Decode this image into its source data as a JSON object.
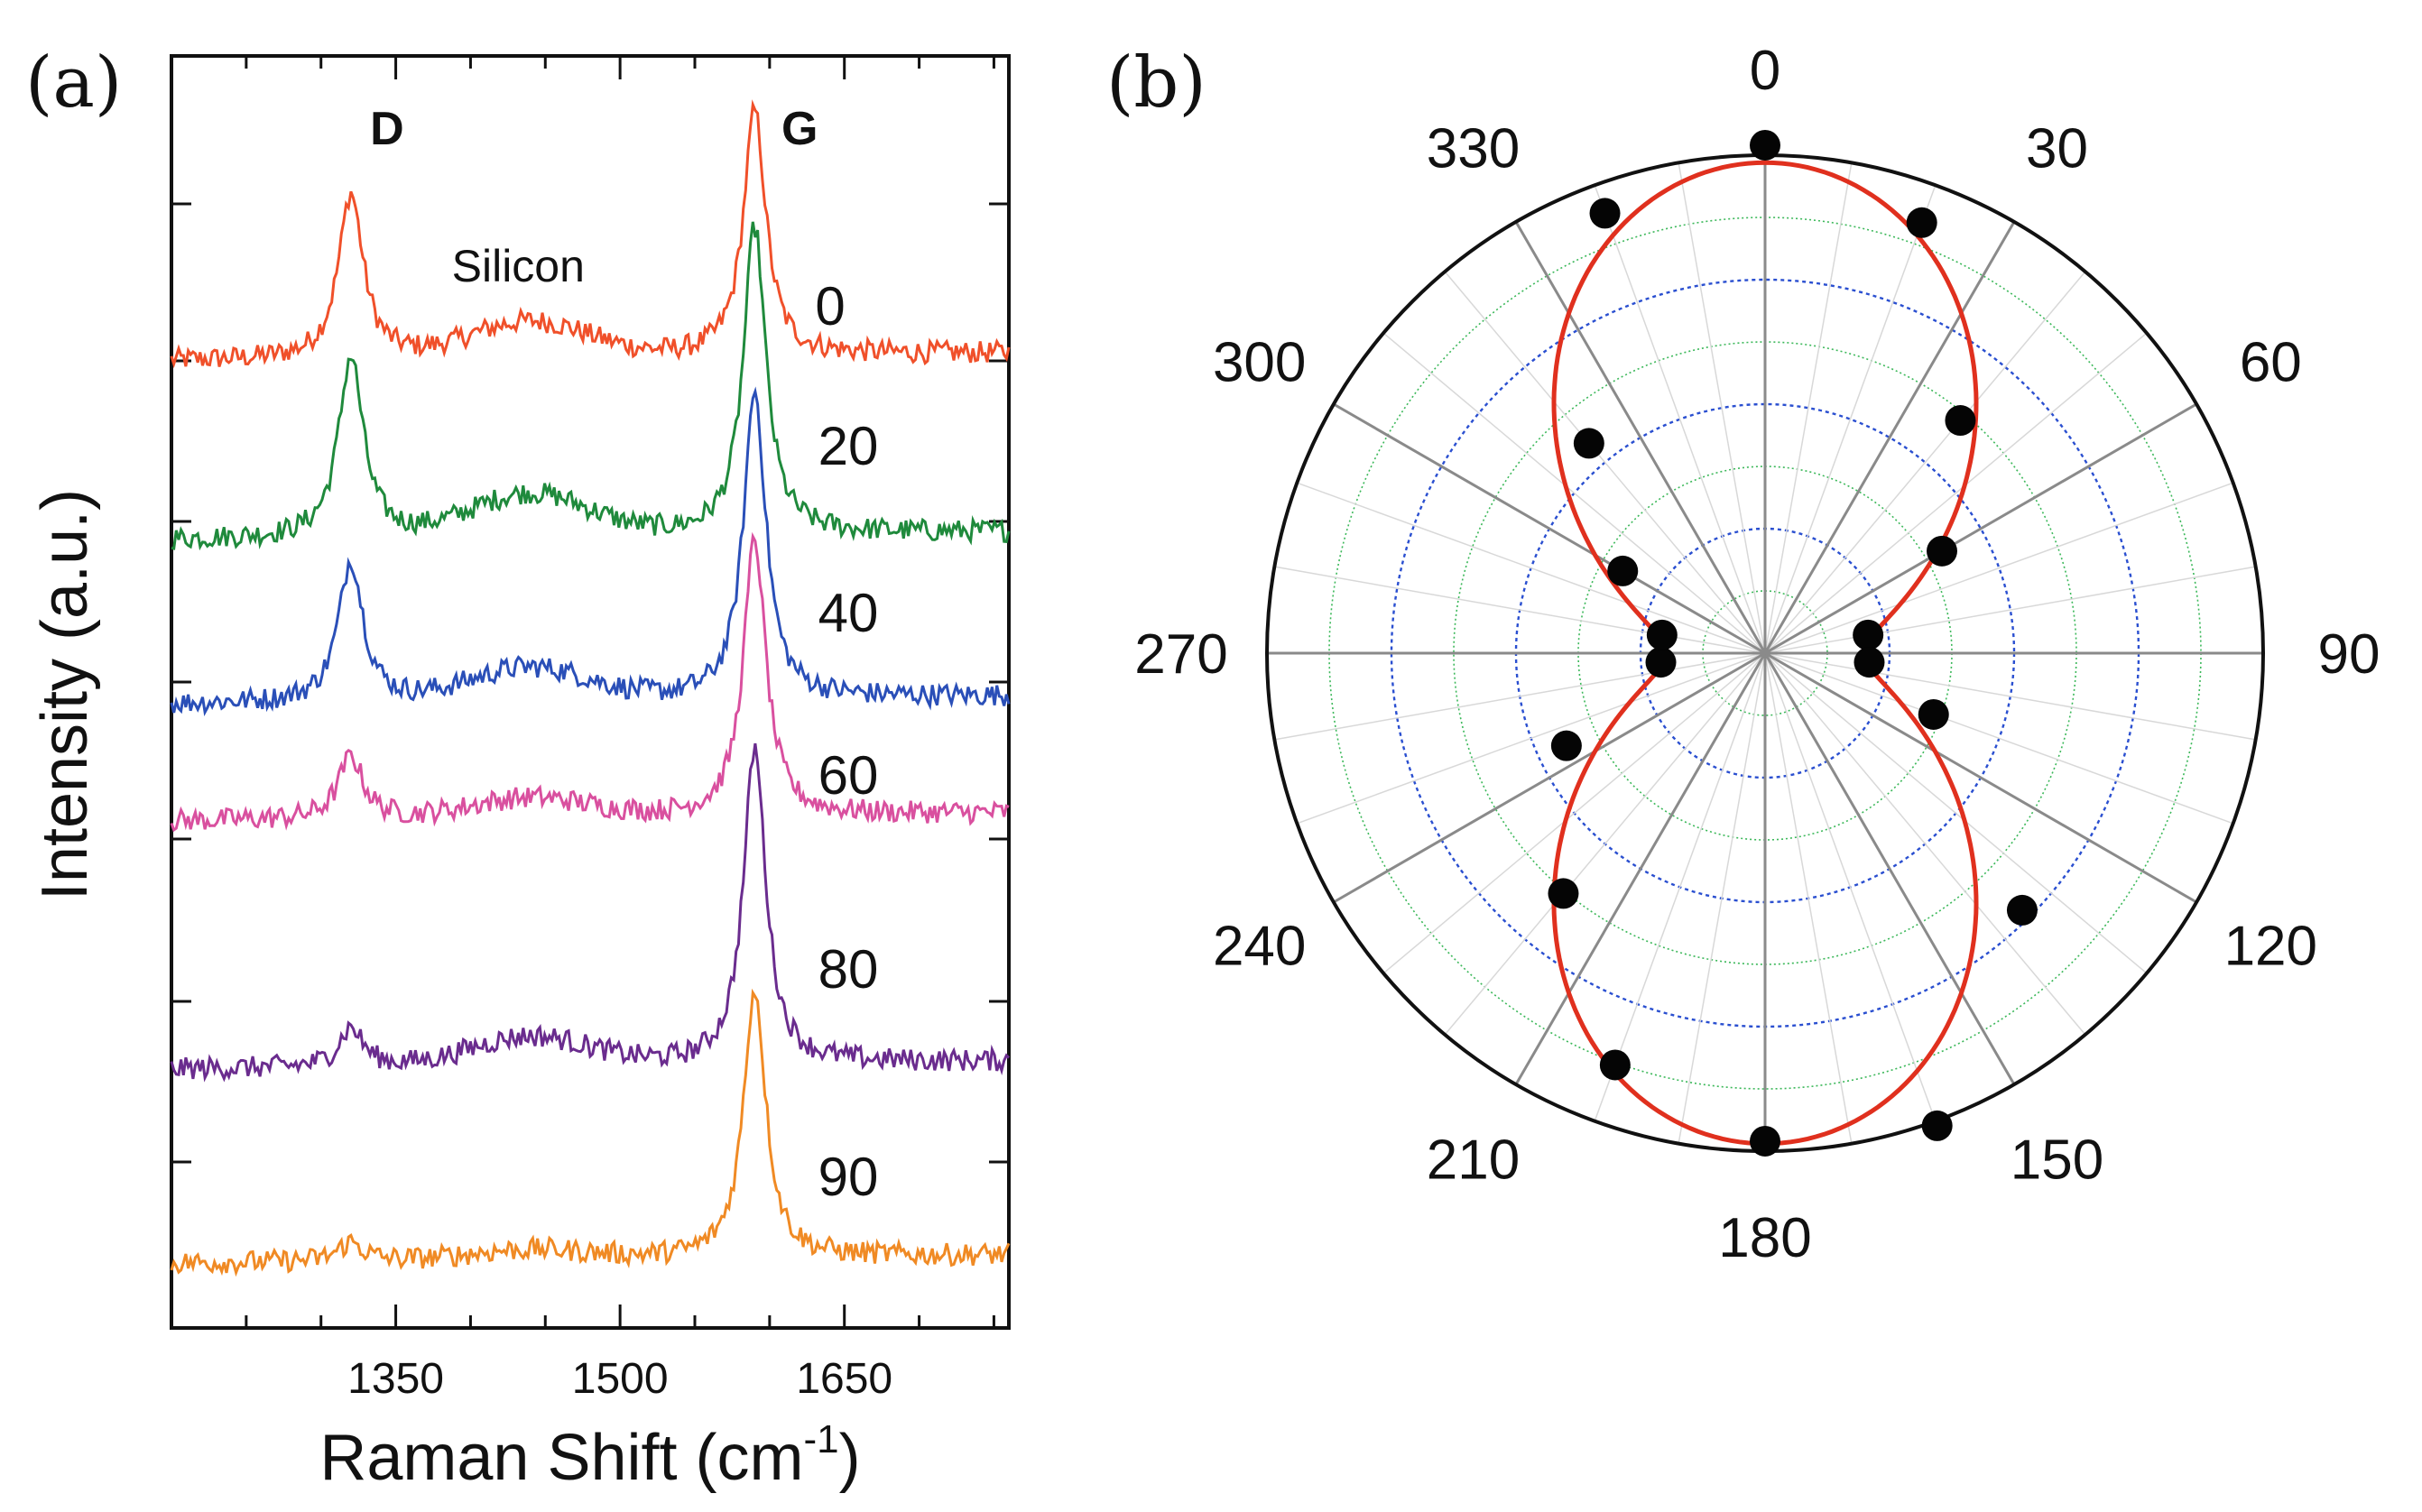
{
  "chart_data": [
    {
      "panel": "(a)",
      "type": "line",
      "title": "",
      "xlabel": "Raman Shift (cm",
      "xlabel_sup": "-1",
      "xlabel_close": ")",
      "ylabel": "Intensity (a.u.)",
      "xlim": [
        1200,
        1760
      ],
      "x_ticks": [
        1350,
        1500,
        1650
      ],
      "x_tick_labels": [
        "1350",
        "1500",
        "1650"
      ],
      "peak_labels": [
        {
          "text": "D",
          "x": 1320
        },
        {
          "text": "G",
          "x": 1590
        }
      ],
      "annotation": {
        "text": "Silicon",
        "x": 1450
      },
      "series": [
        {
          "name": "0",
          "color": "#f0502a",
          "baseline": 0.0,
          "d_peak": 1.05,
          "g_peak": 1.55,
          "si_bump": 0.22
        },
        {
          "name": "20",
          "color": "#1f8a3c",
          "baseline": -1.0,
          "d_peak": 1.15,
          "g_peak": 1.95,
          "si_bump": 0.26
        },
        {
          "name": "40",
          "color": "#2a4fb8",
          "baseline": -2.05,
          "d_peak": 0.9,
          "g_peak": 1.95,
          "si_bump": 0.2
        },
        {
          "name": "60",
          "color": "#d9509f",
          "baseline": -2.9,
          "d_peak": 0.4,
          "g_peak": 1.75,
          "si_bump": 0.12
        },
        {
          "name": "80",
          "color": "#6a2c8e",
          "baseline": -4.45,
          "d_peak": 0.25,
          "g_peak": 2.0,
          "si_bump": 0.18
        },
        {
          "name": "90",
          "color": "#f08a24",
          "baseline": -5.6,
          "d_peak": 0.12,
          "g_peak": 1.7,
          "si_bump": 0.06
        }
      ]
    },
    {
      "panel": "(b)",
      "type": "scatter",
      "subtype": "polar",
      "title": "",
      "angle_labels": [
        "0",
        "30",
        "60",
        "90",
        "120",
        "150",
        "180",
        "210",
        "240",
        "270",
        "300",
        "330"
      ],
      "r_max": 1.0,
      "fit_model": "0.2 + 0.8*cos^2(theta)",
      "fit_color": "#e0301e",
      "points": [
        {
          "angle": 0,
          "r": 1.02
        },
        {
          "angle": 20,
          "r": 0.92
        },
        {
          "angle": 40,
          "r": 0.61
        },
        {
          "angle": 60,
          "r": 0.41
        },
        {
          "angle": 80,
          "r": 0.21
        },
        {
          "angle": 95,
          "r": 0.21
        },
        {
          "angle": 110,
          "r": 0.36
        },
        {
          "angle": 135,
          "r": 0.73
        },
        {
          "angle": 160,
          "r": 1.01
        },
        {
          "angle": 180,
          "r": 0.98
        },
        {
          "angle": 200,
          "r": 0.88
        },
        {
          "angle": 220,
          "r": 0.63
        },
        {
          "angle": 245,
          "r": 0.44
        },
        {
          "angle": 265,
          "r": 0.21
        },
        {
          "angle": 280,
          "r": 0.21
        },
        {
          "angle": 300,
          "r": 0.33
        },
        {
          "angle": 320,
          "r": 0.55
        },
        {
          "angle": 340,
          "r": 0.94
        }
      ]
    }
  ]
}
